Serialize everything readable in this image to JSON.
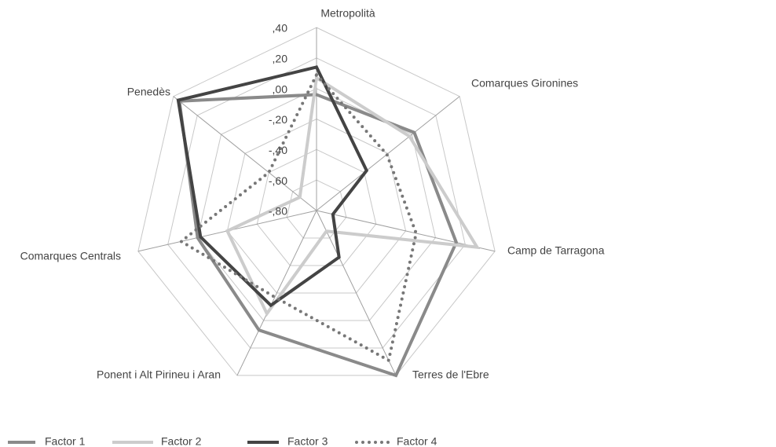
{
  "chart_data": {
    "type": "radar",
    "categories": [
      "Metropolità",
      "Comarques Gironines",
      "Camp de Tarragona",
      "Terres de l'Ebre",
      "Ponent i Alt Pirineu i Aran",
      "Comarques Centrals",
      "Penedès"
    ],
    "rlim": [
      -0.8,
      0.4
    ],
    "rticks": [
      {
        "value": 0.4,
        "label": ",40"
      },
      {
        "value": 0.2,
        "label": ",20"
      },
      {
        "value": 0.0,
        "label": ",00"
      },
      {
        "value": -0.2,
        "label": "-,20"
      },
      {
        "value": -0.4,
        "label": "-,40"
      },
      {
        "value": -0.6,
        "label": "-,60"
      },
      {
        "value": -0.8,
        "label": "-,80"
      }
    ],
    "grid": true,
    "legend": "bottom",
    "series": [
      {
        "name": "Factor 1",
        "color": "#8a8a8a",
        "dash": "solid",
        "values": [
          -0.04,
          0.02,
          0.14,
          0.4,
          0.07,
          0.0,
          0.35
        ]
      },
      {
        "name": "Factor 2",
        "color": "#cccccc",
        "dash": "solid",
        "values": [
          0.07,
          -0.02,
          0.28,
          -0.65,
          -0.05,
          -0.2,
          -0.66
        ]
      },
      {
        "name": "Factor 3",
        "color": "#444444",
        "dash": "solid",
        "values": [
          0.14,
          -0.38,
          -0.69,
          -0.46,
          -0.11,
          -0.02,
          0.36
        ]
      },
      {
        "name": "Factor 4",
        "color": "#777777",
        "dash": "dotted",
        "values": [
          0.09,
          -0.21,
          -0.13,
          0.29,
          -0.17,
          0.11,
          -0.4
        ]
      }
    ]
  }
}
